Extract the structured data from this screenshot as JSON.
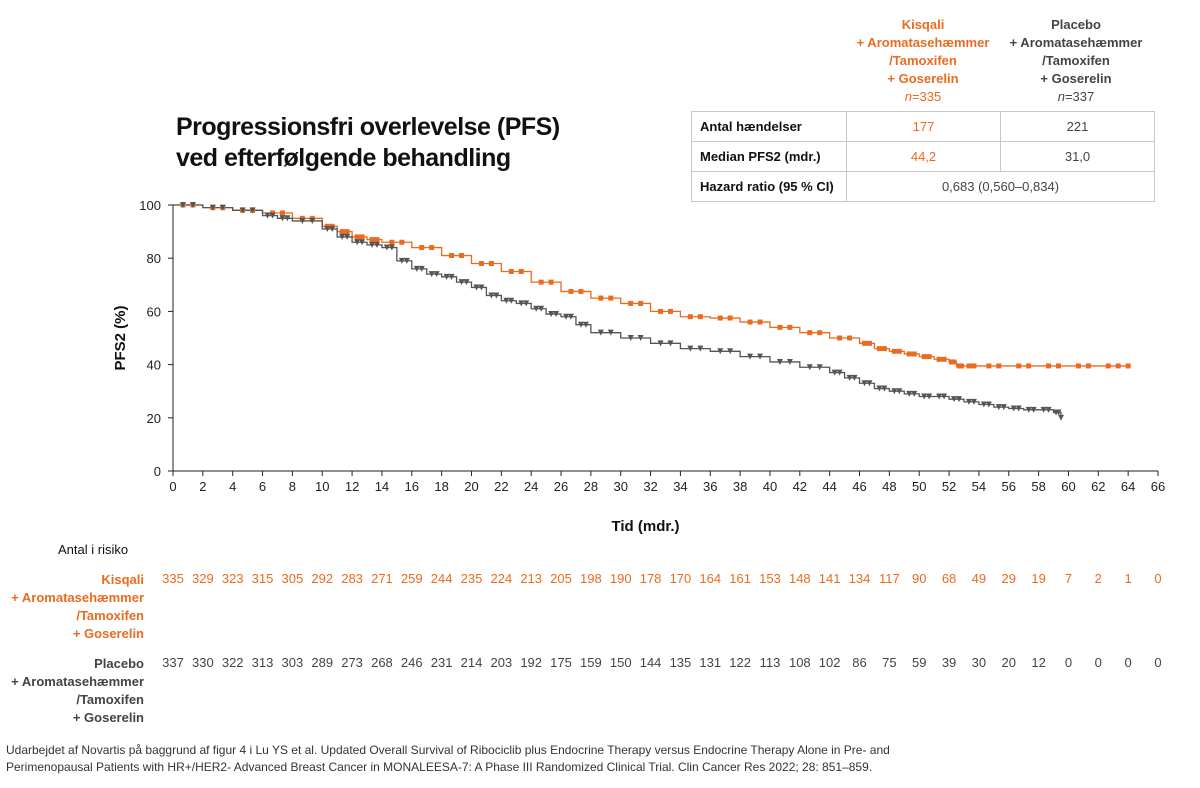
{
  "title": {
    "line1": "Progressionsfri overlevelse (PFS)",
    "line2": "ved efterfølgende behandling"
  },
  "arms": {
    "kisqali": {
      "line1": "Kisqali",
      "line2": "+ Aromatasehæmmer",
      "line3": "/Tamoxifen",
      "line4": "+ Goserelin",
      "n_label": "n",
      "n_value": "=335"
    },
    "placebo": {
      "line1": "Placebo",
      "line2": "+ Aromatasehæmmer",
      "line3": "/Tamoxifen",
      "line4": "+ Goserelin",
      "n_label": "n",
      "n_value": "=337"
    }
  },
  "stats_table": {
    "events_label": "Antal hændelser",
    "events_kisqali": "177",
    "events_placebo": "221",
    "median_label": "Median PFS2 (mdr.)",
    "median_kisqali": "44,2",
    "median_placebo": "31,0",
    "hr_label": "Hazard ratio (95 % CI)",
    "hr_value": "0,683 (0,560–0,834)"
  },
  "at_risk": {
    "title": "Antal i risiko",
    "kisqali_label": [
      "Kisqali",
      "+ Aromatasehæmmer",
      "/Tamoxifen",
      "+ Goserelin"
    ],
    "placebo_label": [
      "Placebo",
      "+ Aromatasehæmmer",
      "/Tamoxifen",
      "+ Goserelin"
    ],
    "kisqali": [
      "335",
      "329",
      "323",
      "315",
      "305",
      "292",
      "283",
      "271",
      "259",
      "244",
      "235",
      "224",
      "213",
      "205",
      "198",
      "190",
      "178",
      "170",
      "164",
      "161",
      "153",
      "148",
      "141",
      "134",
      "117",
      "90",
      "68",
      "49",
      "29",
      "19",
      "7",
      "2",
      "1",
      "0"
    ],
    "placebo": [
      "337",
      "330",
      "322",
      "313",
      "303",
      "289",
      "273",
      "268",
      "246",
      "231",
      "214",
      "203",
      "192",
      "175",
      "159",
      "150",
      "144",
      "135",
      "131",
      "122",
      "113",
      "108",
      "102",
      "86",
      "75",
      "59",
      "39",
      "30",
      "20",
      "12",
      "0",
      "0",
      "0",
      "0"
    ]
  },
  "footnote": {
    "line1": "Udarbejdet af Novartis på baggrund af figur 4 i Lu YS et al. Updated Overall Survival of Ribociclib plus Endocrine Therapy versus Endocrine Therapy Alone in Pre- and",
    "line2": "Perimenopausal Patients with HR+/HER2- Advanced Breast Cancer in MONALEESA-7: A Phase III Randomized Clinical Trial. Clin Cancer Res 2022; 28: 851–859."
  },
  "colors": {
    "kisqali": "#ea6b1f",
    "placebo": "#555555"
  },
  "chart_data": {
    "type": "line",
    "title": "Progressionsfri overlevelse (PFS) ved efterfølgende behandling",
    "xlabel": "Tid (mdr.)",
    "ylabel": "PFS2 (%)",
    "xlim": [
      0,
      66
    ],
    "ylim": [
      0,
      100
    ],
    "xticks": [
      "0",
      "2",
      "4",
      "6",
      "8",
      "10",
      "12",
      "14",
      "16",
      "18",
      "20",
      "22",
      "24",
      "26",
      "28",
      "30",
      "32",
      "34",
      "36",
      "38",
      "40",
      "42",
      "44",
      "46",
      "48",
      "50",
      "52",
      "54",
      "56",
      "58",
      "60",
      "62",
      "64",
      "66"
    ],
    "yticks": [
      "0",
      "20",
      "40",
      "60",
      "80",
      "100"
    ],
    "series": [
      {
        "name": "Kisqali + Aromatasehæmmer /Tamoxifen + Goserelin",
        "color": "#ea6b1f",
        "marker": "square",
        "x": [
          0,
          2,
          4,
          6,
          8,
          10,
          11,
          12,
          13,
          14,
          16,
          18,
          20,
          22,
          24,
          26,
          28,
          30,
          32,
          34,
          36,
          38,
          40,
          42,
          44,
          46,
          47,
          48,
          49,
          50,
          51,
          52,
          52.5,
          53,
          54,
          56,
          58,
          60,
          62,
          64
        ],
        "y": [
          100,
          99,
          98,
          97,
          95,
          92,
          90,
          88,
          87,
          86,
          84,
          81,
          78,
          75,
          71,
          67.5,
          65,
          63,
          60,
          58,
          57.5,
          56,
          54,
          52,
          50,
          48,
          46,
          45,
          44,
          43,
          42,
          41,
          39.5,
          39.5,
          39.5,
          39.5,
          39.5,
          39.5,
          39.5,
          39.5
        ]
      },
      {
        "name": "Placebo + Aromatasehæmmer /Tamoxifen + Goserelin",
        "color": "#555555",
        "marker": "triangle",
        "x": [
          0,
          2,
          4,
          6,
          7,
          8,
          10,
          11,
          12,
          13,
          14,
          15,
          16,
          17,
          18,
          19,
          20,
          21,
          22,
          23,
          24,
          25,
          26,
          27,
          28,
          30,
          32,
          34,
          36,
          38,
          40,
          42,
          44,
          45,
          46,
          47,
          48,
          49,
          50,
          51,
          52,
          53,
          54,
          55,
          56,
          57,
          58,
          59,
          59.5
        ],
        "y": [
          100,
          99,
          98,
          96,
          95,
          94,
          91,
          88,
          86,
          85,
          84,
          79,
          76,
          74,
          73,
          71,
          69,
          66,
          64,
          63,
          61,
          59,
          58,
          55,
          52,
          50,
          48,
          46,
          45,
          43,
          41,
          39,
          37,
          35,
          33,
          31,
          30,
          29,
          28,
          28,
          27,
          26,
          25,
          24,
          23.5,
          23,
          23,
          22,
          20
        ]
      }
    ]
  }
}
